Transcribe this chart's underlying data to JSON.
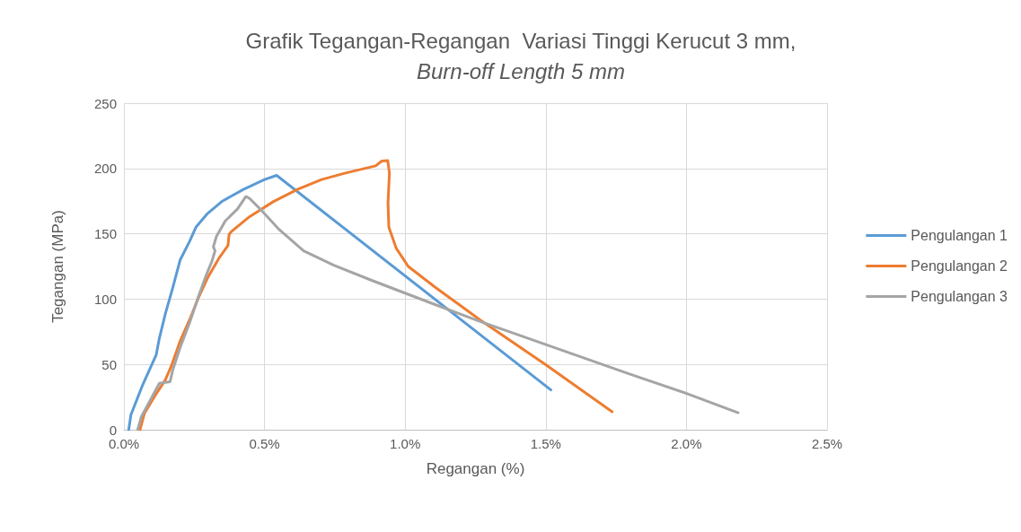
{
  "chart_data": {
    "type": "line",
    "title": "Grafik Tegangan-Regangan  Variasi Tinggi Kerucut 3 mm,",
    "subtitle": "Burn-off Length 5 mm",
    "xlabel": "Regangan (%)",
    "ylabel": "Tegangan (MPa)",
    "xlim": [
      0,
      2.5
    ],
    "xticks": [
      {
        "value": 0,
        "label": "0.0%"
      },
      {
        "value": 0.5,
        "label": "0.5%"
      },
      {
        "value": 1,
        "label": "1.0%"
      },
      {
        "value": 1.5,
        "label": "1.5%"
      },
      {
        "value": 2,
        "label": "2.0%"
      },
      {
        "value": 2.5,
        "label": "2.5%"
      }
    ],
    "ylim": [
      0,
      250
    ],
    "yticks": [
      0,
      50,
      100,
      150,
      200,
      250
    ],
    "grid": true,
    "legend": "right",
    "marker": "none",
    "line_style": "solid",
    "series": [
      {
        "name": "Pengulangan 1",
        "color": "#5b9bd5",
        "x": [
          0.017,
          0.025,
          0.067,
          0.115,
          0.126,
          0.147,
          0.174,
          0.2,
          0.233,
          0.256,
          0.297,
          0.35,
          0.425,
          0.5,
          0.543,
          1.518
        ],
        "values": [
          0,
          11.5,
          34.5,
          57.5,
          70,
          88.5,
          109,
          130,
          144,
          155,
          165.5,
          175,
          184,
          191.5,
          194.7,
          30.5
        ]
      },
      {
        "name": "Pengulangan 2",
        "color": "#ed7d31",
        "x": [
          0.057,
          0.073,
          0.115,
          0.147,
          0.169,
          0.2,
          0.233,
          0.265,
          0.297,
          0.34,
          0.37,
          0.374,
          0.382,
          0.446,
          0.532,
          0.617,
          0.703,
          0.788,
          0.895,
          0.917,
          0.938,
          0.944,
          0.939,
          0.942,
          0.968,
          1.011,
          1.107,
          1.267,
          1.502,
          1.736
        ],
        "values": [
          0,
          12.6,
          27.6,
          38,
          49,
          68,
          84,
          101,
          116,
          132,
          141,
          149.4,
          151.7,
          163,
          174.7,
          184,
          191.5,
          196.5,
          202,
          205.7,
          206,
          196.5,
          173.5,
          155,
          139,
          125,
          109,
          84,
          49.4,
          13.8
        ]
      },
      {
        "name": "Pengulangan 3",
        "color": "#a5a5a5",
        "x": [
          0.049,
          0.062,
          0.126,
          0.164,
          0.174,
          0.2,
          0.233,
          0.265,
          0.292,
          0.313,
          0.324,
          0.318,
          0.329,
          0.361,
          0.404,
          0.434,
          0.447,
          0.489,
          0.553,
          0.639,
          0.746,
          0.885,
          1.098,
          1.267,
          1.8,
          2.003,
          2.184
        ],
        "values": [
          0,
          10,
          35.6,
          36.8,
          46,
          63,
          81.6,
          102,
          118,
          129,
          137,
          140,
          148,
          160,
          169,
          178.6,
          177,
          168,
          153,
          137,
          126,
          114,
          96.5,
          82.8,
          42.5,
          27.6,
          13
        ]
      }
    ]
  }
}
